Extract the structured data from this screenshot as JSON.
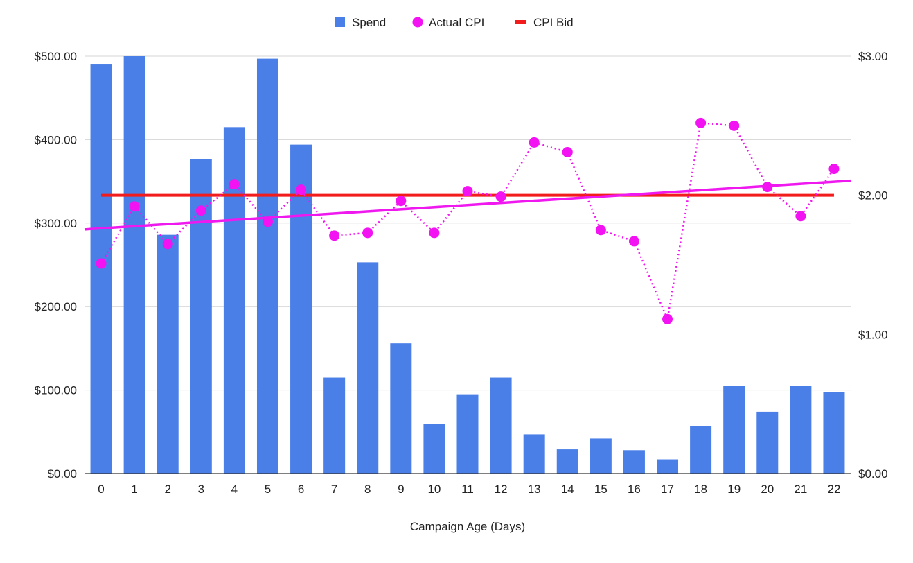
{
  "chart_data": {
    "type": "bar",
    "title": "",
    "xlabel": "Campaign Age (Days)",
    "ylabel_left": "",
    "ylabel_right": "",
    "categories": [
      "0",
      "1",
      "2",
      "3",
      "4",
      "5",
      "6",
      "7",
      "8",
      "9",
      "10",
      "11",
      "12",
      "13",
      "14",
      "15",
      "16",
      "17",
      "18",
      "19",
      "20",
      "21",
      "22"
    ],
    "left_axis": {
      "ylim": [
        0,
        500
      ],
      "ticks": [
        0,
        100,
        200,
        300,
        400,
        500
      ],
      "tick_labels": [
        "$0.00",
        "$100.00",
        "$200.00",
        "$300.00",
        "$400.00",
        "$500.00"
      ]
    },
    "right_axis": {
      "ylim": [
        0,
        3
      ],
      "ticks": [
        0,
        1,
        2,
        3
      ],
      "tick_labels": [
        "$0.00",
        "$1.00",
        "$2.00",
        "$3.00"
      ]
    },
    "series": [
      {
        "name": "Spend",
        "kind": "bar",
        "axis": "left",
        "color": "#4a7fe8",
        "values": [
          490,
          500,
          286,
          377,
          415,
          497,
          394,
          115,
          253,
          156,
          59,
          95,
          115,
          47,
          29,
          42,
          28,
          17,
          57,
          105,
          74,
          105,
          98
        ]
      },
      {
        "name": "Actual CPI",
        "kind": "line-dotted-markers",
        "axis": "right",
        "color": "#f212f2",
        "values": [
          1.51,
          1.92,
          1.65,
          1.89,
          2.08,
          1.81,
          2.04,
          1.71,
          1.73,
          1.96,
          1.73,
          2.03,
          1.99,
          2.38,
          2.31,
          1.75,
          1.67,
          1.11,
          2.52,
          2.5,
          2.06,
          1.85,
          2.19
        ]
      },
      {
        "name": "CPI Bid",
        "kind": "line",
        "axis": "right",
        "color": "#f21c1c",
        "values": [
          2.0,
          2.0,
          2.0,
          2.0,
          2.0,
          2.0,
          2.0,
          2.0,
          2.0,
          2.0,
          2.0,
          2.0,
          2.0,
          2.0,
          2.0,
          2.0,
          2.0,
          2.0,
          2.0,
          2.0,
          2.0,
          2.0,
          2.0
        ]
      }
    ],
    "trendline": {
      "series": "Actual CPI",
      "axis": "right",
      "color": "#ef19ef",
      "start_value": 1.755,
      "end_value": 2.105
    },
    "legend": {
      "placement": "top-center",
      "entries": [
        "Spend",
        "Actual CPI",
        "CPI Bid"
      ]
    },
    "grid": true
  }
}
